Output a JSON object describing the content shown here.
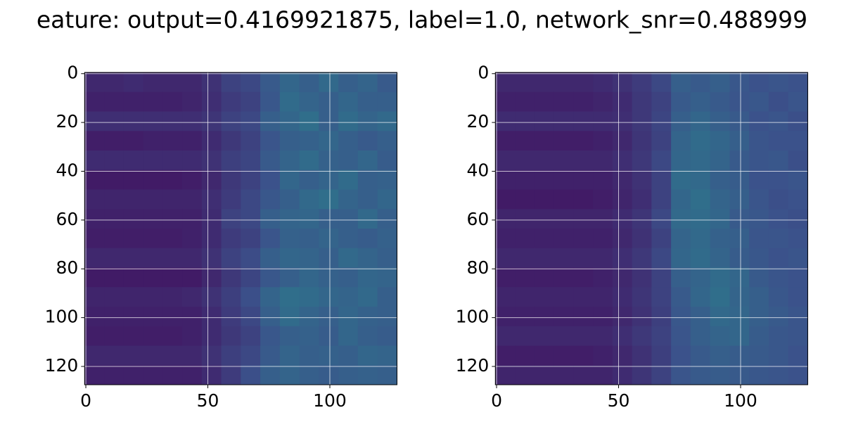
{
  "title": "eature: output=0.4169921875, label=1.0, network_snr=0.488999",
  "chart_data": [
    {
      "type": "heatmap",
      "colormap": "viridis",
      "grid": true,
      "xlim": [
        -0.5,
        127.5
      ],
      "ylim": [
        127.5,
        -0.5
      ],
      "xticks": [
        0,
        50,
        100
      ],
      "yticks": [
        0,
        20,
        40,
        60,
        80,
        100,
        120
      ],
      "z": [
        [
          0.12,
          0.12,
          0.13,
          0.12,
          0.12,
          0.12,
          0.15,
          0.2,
          0.22,
          0.28,
          0.33,
          0.3,
          0.34,
          0.3,
          0.32,
          0.28
        ],
        [
          0.1,
          0.1,
          0.1,
          0.1,
          0.1,
          0.11,
          0.14,
          0.18,
          0.2,
          0.27,
          0.35,
          0.32,
          0.3,
          0.33,
          0.3,
          0.3
        ],
        [
          0.14,
          0.14,
          0.14,
          0.14,
          0.14,
          0.14,
          0.16,
          0.2,
          0.22,
          0.3,
          0.33,
          0.36,
          0.3,
          0.35,
          0.32,
          0.34
        ],
        [
          0.09,
          0.09,
          0.09,
          0.1,
          0.1,
          0.1,
          0.13,
          0.17,
          0.2,
          0.26,
          0.3,
          0.31,
          0.33,
          0.3,
          0.28,
          0.3
        ],
        [
          0.13,
          0.13,
          0.13,
          0.13,
          0.13,
          0.13,
          0.15,
          0.19,
          0.21,
          0.28,
          0.32,
          0.35,
          0.31,
          0.3,
          0.33,
          0.29
        ],
        [
          0.08,
          0.08,
          0.08,
          0.08,
          0.08,
          0.09,
          0.12,
          0.17,
          0.2,
          0.25,
          0.33,
          0.3,
          0.32,
          0.35,
          0.3,
          0.31
        ],
        [
          0.11,
          0.11,
          0.11,
          0.11,
          0.11,
          0.11,
          0.14,
          0.18,
          0.22,
          0.27,
          0.3,
          0.34,
          0.36,
          0.32,
          0.3,
          0.33
        ],
        [
          0.1,
          0.1,
          0.1,
          0.1,
          0.1,
          0.1,
          0.13,
          0.2,
          0.22,
          0.3,
          0.32,
          0.33,
          0.3,
          0.3,
          0.34,
          0.3
        ],
        [
          0.09,
          0.09,
          0.09,
          0.09,
          0.09,
          0.1,
          0.13,
          0.18,
          0.2,
          0.26,
          0.31,
          0.3,
          0.32,
          0.3,
          0.29,
          0.31
        ],
        [
          0.12,
          0.12,
          0.12,
          0.12,
          0.12,
          0.12,
          0.15,
          0.2,
          0.23,
          0.3,
          0.33,
          0.32,
          0.3,
          0.34,
          0.32,
          0.3
        ],
        [
          0.08,
          0.08,
          0.08,
          0.08,
          0.08,
          0.08,
          0.12,
          0.17,
          0.21,
          0.27,
          0.3,
          0.33,
          0.31,
          0.3,
          0.33,
          0.32
        ],
        [
          0.11,
          0.11,
          0.11,
          0.11,
          0.11,
          0.12,
          0.15,
          0.19,
          0.24,
          0.32,
          0.36,
          0.35,
          0.33,
          0.32,
          0.34,
          0.3
        ],
        [
          0.1,
          0.1,
          0.1,
          0.1,
          0.1,
          0.1,
          0.13,
          0.18,
          0.22,
          0.3,
          0.35,
          0.32,
          0.3,
          0.33,
          0.31,
          0.3
        ],
        [
          0.09,
          0.09,
          0.09,
          0.09,
          0.09,
          0.1,
          0.13,
          0.17,
          0.2,
          0.27,
          0.3,
          0.31,
          0.29,
          0.33,
          0.3,
          0.29
        ],
        [
          0.12,
          0.12,
          0.12,
          0.12,
          0.12,
          0.12,
          0.15,
          0.19,
          0.22,
          0.28,
          0.32,
          0.3,
          0.31,
          0.3,
          0.33,
          0.32
        ],
        [
          0.1,
          0.1,
          0.1,
          0.1,
          0.1,
          0.1,
          0.13,
          0.18,
          0.24,
          0.3,
          0.32,
          0.3,
          0.29,
          0.3,
          0.31,
          0.3
        ]
      ]
    },
    {
      "type": "heatmap",
      "colormap": "viridis",
      "grid": true,
      "xlim": [
        -0.5,
        127.5
      ],
      "ylim": [
        127.5,
        -0.5
      ],
      "xticks": [
        0,
        50,
        100
      ],
      "yticks": [
        0,
        20,
        40,
        60,
        80,
        100,
        120
      ],
      "z": [
        [
          0.12,
          0.12,
          0.12,
          0.12,
          0.12,
          0.13,
          0.15,
          0.18,
          0.22,
          0.3,
          0.28,
          0.3,
          0.27,
          0.25,
          0.26,
          0.25
        ],
        [
          0.1,
          0.1,
          0.1,
          0.1,
          0.1,
          0.11,
          0.13,
          0.17,
          0.2,
          0.28,
          0.3,
          0.28,
          0.26,
          0.27,
          0.24,
          0.26
        ],
        [
          0.13,
          0.13,
          0.13,
          0.13,
          0.13,
          0.13,
          0.14,
          0.17,
          0.21,
          0.3,
          0.33,
          0.3,
          0.28,
          0.25,
          0.26,
          0.24
        ],
        [
          0.09,
          0.09,
          0.09,
          0.09,
          0.09,
          0.1,
          0.12,
          0.16,
          0.2,
          0.32,
          0.35,
          0.33,
          0.3,
          0.26,
          0.25,
          0.25
        ],
        [
          0.12,
          0.12,
          0.12,
          0.12,
          0.12,
          0.12,
          0.14,
          0.17,
          0.22,
          0.33,
          0.34,
          0.32,
          0.28,
          0.26,
          0.27,
          0.24
        ],
        [
          0.1,
          0.1,
          0.1,
          0.1,
          0.1,
          0.1,
          0.12,
          0.15,
          0.2,
          0.35,
          0.34,
          0.3,
          0.29,
          0.25,
          0.25,
          0.26
        ],
        [
          0.08,
          0.08,
          0.08,
          0.08,
          0.08,
          0.09,
          0.11,
          0.14,
          0.2,
          0.33,
          0.36,
          0.32,
          0.3,
          0.26,
          0.24,
          0.25
        ],
        [
          0.11,
          0.11,
          0.11,
          0.11,
          0.11,
          0.11,
          0.13,
          0.16,
          0.22,
          0.34,
          0.35,
          0.33,
          0.28,
          0.27,
          0.25,
          0.24
        ],
        [
          0.1,
          0.1,
          0.1,
          0.1,
          0.1,
          0.1,
          0.12,
          0.15,
          0.2,
          0.32,
          0.34,
          0.31,
          0.3,
          0.26,
          0.26,
          0.25
        ],
        [
          0.12,
          0.12,
          0.12,
          0.12,
          0.12,
          0.12,
          0.14,
          0.17,
          0.22,
          0.33,
          0.35,
          0.32,
          0.29,
          0.27,
          0.25,
          0.26
        ],
        [
          0.09,
          0.09,
          0.09,
          0.09,
          0.09,
          0.1,
          0.12,
          0.15,
          0.2,
          0.3,
          0.32,
          0.35,
          0.33,
          0.28,
          0.26,
          0.25
        ],
        [
          0.11,
          0.11,
          0.11,
          0.11,
          0.11,
          0.11,
          0.13,
          0.16,
          0.2,
          0.28,
          0.33,
          0.36,
          0.32,
          0.3,
          0.27,
          0.25
        ],
        [
          0.1,
          0.1,
          0.1,
          0.1,
          0.1,
          0.1,
          0.12,
          0.15,
          0.19,
          0.27,
          0.3,
          0.34,
          0.33,
          0.3,
          0.28,
          0.26
        ],
        [
          0.12,
          0.12,
          0.12,
          0.12,
          0.12,
          0.12,
          0.14,
          0.17,
          0.2,
          0.26,
          0.3,
          0.32,
          0.33,
          0.29,
          0.27,
          0.26
        ],
        [
          0.09,
          0.09,
          0.09,
          0.09,
          0.09,
          0.1,
          0.12,
          0.15,
          0.19,
          0.25,
          0.28,
          0.3,
          0.29,
          0.28,
          0.27,
          0.25
        ],
        [
          0.11,
          0.11,
          0.11,
          0.11,
          0.11,
          0.11,
          0.13,
          0.16,
          0.2,
          0.26,
          0.28,
          0.29,
          0.28,
          0.27,
          0.26,
          0.25
        ]
      ]
    }
  ]
}
